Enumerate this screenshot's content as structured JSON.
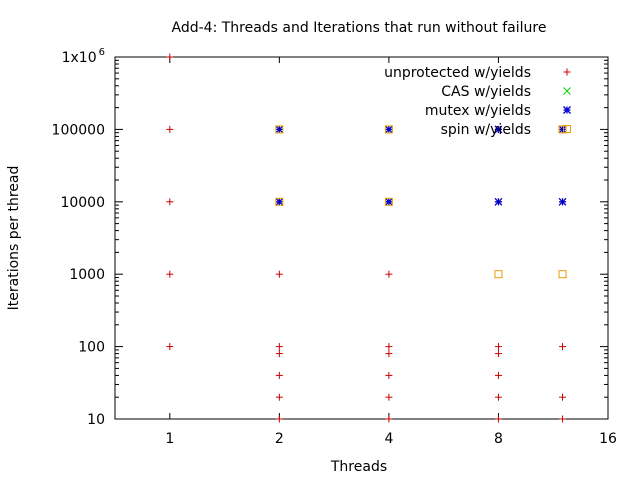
{
  "chart_data": {
    "type": "scatter",
    "title": "Add-4: Threads and Iterations that run without failure",
    "xlabel": "Threads",
    "ylabel": "Iterations per thread",
    "x_scale": "log2",
    "y_scale": "log10",
    "xlim": [
      0.707,
      16
    ],
    "ylim": [
      10,
      1000000
    ],
    "x_ticks": [
      {
        "value": 1,
        "label": "1"
      },
      {
        "value": 2,
        "label": "2"
      },
      {
        "value": 4,
        "label": "4"
      },
      {
        "value": 8,
        "label": "8"
      },
      {
        "value": 16,
        "label": "16"
      }
    ],
    "y_ticks": [
      {
        "value": 10,
        "label": "10"
      },
      {
        "value": 100,
        "label": "100"
      },
      {
        "value": 1000,
        "label": "1000"
      },
      {
        "value": 10000,
        "label": "10000"
      },
      {
        "value": 100000,
        "label": "100000"
      },
      {
        "value": 1000000,
        "label": "1x10",
        "superscript": "6"
      }
    ],
    "grid": false,
    "legend_position": "top-right",
    "series": [
      {
        "name": "unprotected w/yields",
        "marker": "plus",
        "color": "#cc0000",
        "points": [
          [
            1,
            1000000
          ],
          [
            1,
            100000
          ],
          [
            1,
            10000
          ],
          [
            1,
            1000
          ],
          [
            1,
            100
          ],
          [
            2,
            100000
          ],
          [
            2,
            10000
          ],
          [
            2,
            1000
          ],
          [
            2,
            100
          ],
          [
            2,
            80
          ],
          [
            2,
            40
          ],
          [
            2,
            20
          ],
          [
            2,
            10
          ],
          [
            4,
            100000
          ],
          [
            4,
            10000
          ],
          [
            4,
            1000
          ],
          [
            4,
            100
          ],
          [
            4,
            80
          ],
          [
            4,
            40
          ],
          [
            4,
            20
          ],
          [
            4,
            10
          ],
          [
            8,
            100000
          ],
          [
            8,
            10000
          ],
          [
            8,
            100
          ],
          [
            8,
            80
          ],
          [
            8,
            40
          ],
          [
            8,
            20
          ],
          [
            8,
            10
          ],
          [
            12,
            100000
          ],
          [
            12,
            10000
          ],
          [
            12,
            100
          ],
          [
            12,
            20
          ],
          [
            12,
            10
          ]
        ]
      },
      {
        "name": "CAS w/yields",
        "marker": "cross",
        "color": "#00cc00",
        "points": []
      },
      {
        "name": "mutex w/yields",
        "marker": "star",
        "color": "#0000cc",
        "points": [
          [
            2,
            100000
          ],
          [
            2,
            10000
          ],
          [
            4,
            100000
          ],
          [
            4,
            10000
          ],
          [
            8,
            100000
          ],
          [
            8,
            10000
          ],
          [
            12,
            100000
          ],
          [
            12,
            10000
          ]
        ]
      },
      {
        "name": "spin w/yields",
        "marker": "square",
        "color": "#e8a000",
        "points": [
          [
            2,
            100000
          ],
          [
            2,
            10000
          ],
          [
            4,
            100000
          ],
          [
            4,
            10000
          ],
          [
            8,
            1000
          ],
          [
            12,
            100000
          ],
          [
            12,
            1000
          ]
        ]
      }
    ]
  }
}
